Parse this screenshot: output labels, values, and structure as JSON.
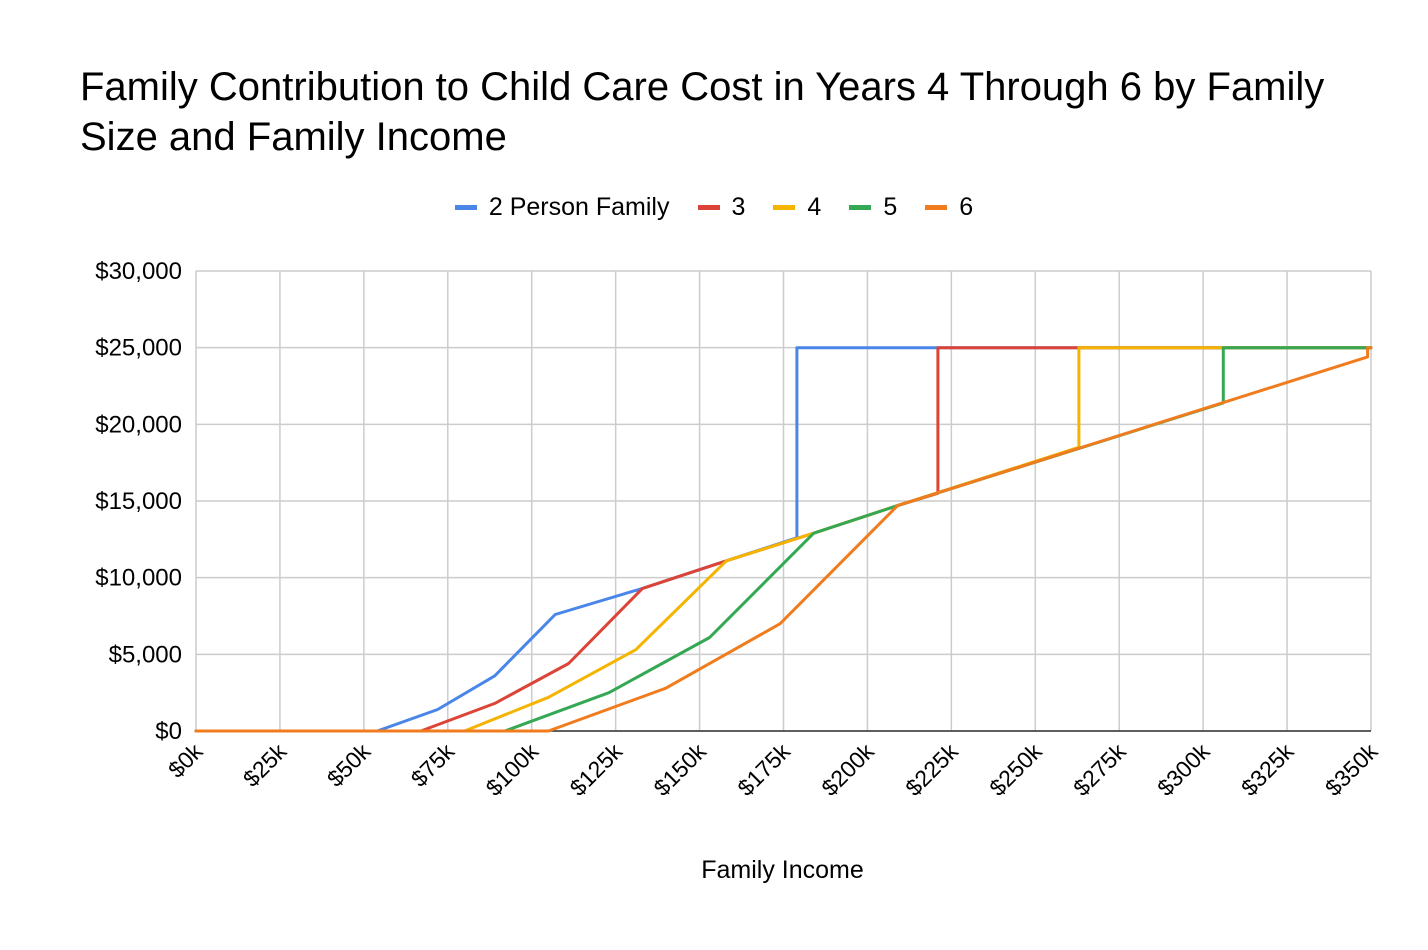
{
  "chart_data": {
    "type": "line",
    "title": "Family Contribution to Child Care Cost in Years 4 Through 6 by Family Size and Family Income",
    "xlabel": "Family Income",
    "ylabel": "",
    "xlim": [
      0,
      350000
    ],
    "ylim": [
      0,
      30000
    ],
    "grid": true,
    "legend_position": "top-center",
    "x_ticks": [
      0,
      25000,
      50000,
      75000,
      100000,
      125000,
      150000,
      175000,
      200000,
      225000,
      250000,
      275000,
      300000,
      325000,
      350000
    ],
    "x_tick_labels": [
      "$0k",
      "$25k",
      "$50k",
      "$75k",
      "$100k",
      "$125k",
      "$150k",
      "$175k",
      "$200k",
      "$225k",
      "$250k",
      "$275k",
      "$300k",
      "$325k",
      "$350k"
    ],
    "y_ticks": [
      0,
      5000,
      10000,
      15000,
      20000,
      25000,
      30000
    ],
    "y_tick_labels": [
      "$0",
      "$5,000",
      "$10,000",
      "$15,000",
      "$20,000",
      "$25,000",
      "$30,000"
    ],
    "series": [
      {
        "name": "2 Person Family",
        "color": "#4a86e8",
        "points": [
          [
            0,
            0
          ],
          [
            54000,
            0
          ],
          [
            72000,
            1400
          ],
          [
            89000,
            3600
          ],
          [
            107000,
            7600
          ],
          [
            133000,
            9300
          ],
          [
            158000,
            11100
          ],
          [
            179000,
            12600
          ],
          [
            179000,
            25000
          ],
          [
            350000,
            25000
          ]
        ]
      },
      {
        "name": "3",
        "color": "#db4437",
        "points": [
          [
            0,
            0
          ],
          [
            67000,
            0
          ],
          [
            89000,
            1800
          ],
          [
            111000,
            4400
          ],
          [
            133000,
            9300
          ],
          [
            158000,
            11100
          ],
          [
            184000,
            12900
          ],
          [
            209000,
            14700
          ],
          [
            221000,
            15500
          ],
          [
            221000,
            25000
          ],
          [
            350000,
            25000
          ]
        ]
      },
      {
        "name": "4",
        "color": "#f4b400",
        "points": [
          [
            0,
            0
          ],
          [
            80000,
            0
          ],
          [
            105000,
            2200
          ],
          [
            131000,
            5300
          ],
          [
            158000,
            11100
          ],
          [
            184000,
            12900
          ],
          [
            209000,
            14700
          ],
          [
            263000,
            18500
          ],
          [
            263000,
            25000
          ],
          [
            350000,
            25000
          ]
        ]
      },
      {
        "name": "5",
        "color": "#34a853",
        "points": [
          [
            0,
            0
          ],
          [
            92000,
            0
          ],
          [
            123000,
            2500
          ],
          [
            153000,
            6100
          ],
          [
            184000,
            12900
          ],
          [
            209000,
            14700
          ],
          [
            306000,
            21400
          ],
          [
            306000,
            25000
          ],
          [
            350000,
            25000
          ]
        ]
      },
      {
        "name": "6",
        "color": "#f07c1e",
        "points": [
          [
            0,
            0
          ],
          [
            105000,
            0
          ],
          [
            140000,
            2800
          ],
          [
            174000,
            7000
          ],
          [
            209000,
            14700
          ],
          [
            349000,
            24400
          ],
          [
            349000,
            25000
          ],
          [
            350000,
            25000
          ]
        ]
      }
    ]
  }
}
